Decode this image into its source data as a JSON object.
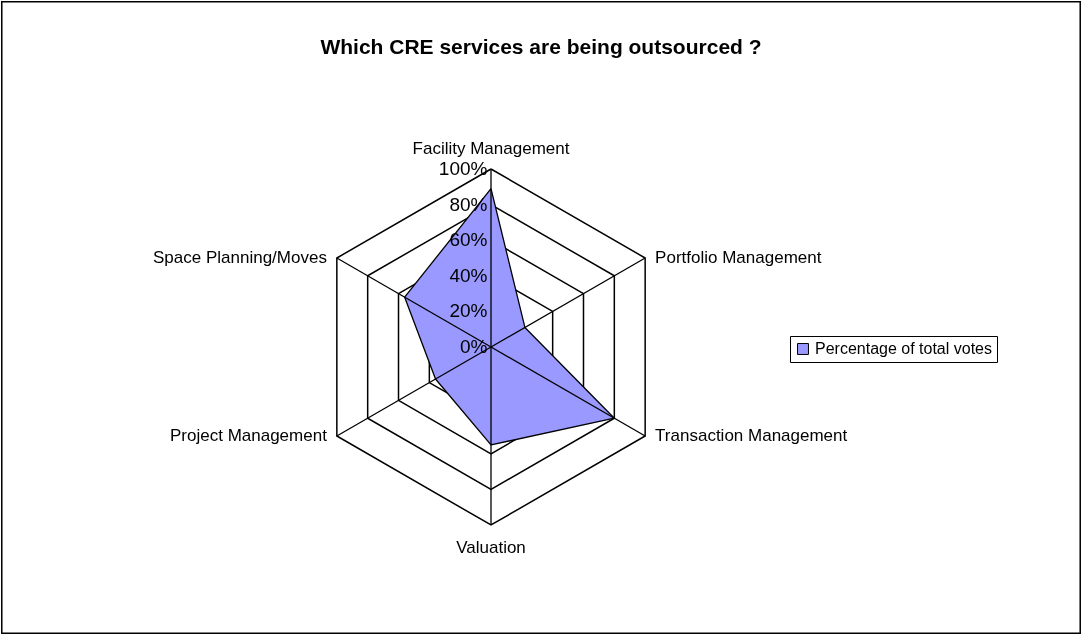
{
  "chart_data": {
    "type": "radar",
    "title": "Which CRE services are being outsourced ?",
    "categories": [
      "Facility Management",
      "Portfolio Management",
      "Transaction Management",
      "Valuation",
      "Project Management",
      "Space Planning/Moves"
    ],
    "series": [
      {
        "name": "Percentage of total votes",
        "color": "#9999ff",
        "values": [
          89,
          22,
          80,
          55,
          36,
          56
        ]
      }
    ],
    "ylim": [
      0,
      100
    ],
    "yticks": [
      {
        "value": 0,
        "label": "0%"
      },
      {
        "value": 20,
        "label": "20%"
      },
      {
        "value": 40,
        "label": "40%"
      },
      {
        "value": 60,
        "label": "60%"
      },
      {
        "value": 80,
        "label": "80%"
      },
      {
        "value": 100,
        "label": "100%"
      }
    ],
    "grid": true,
    "legend": "right",
    "marker": "none"
  }
}
